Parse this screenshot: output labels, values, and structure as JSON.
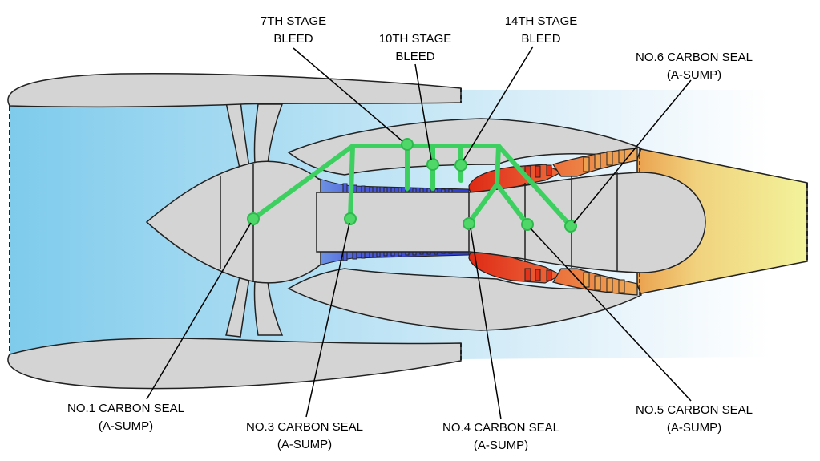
{
  "colors": {
    "inlet_air": "#7ecbec",
    "casing": "#d4d4d4",
    "outline": "#222222",
    "compressor": "#4a5ad8",
    "combustor": "#e2331c",
    "turbine": "#eda050",
    "exhaust": "#f1f09a",
    "bleed_line": "#3dd060"
  },
  "labels": {
    "stage7": {
      "line1": "7TH STAGE",
      "line2": "BLEED"
    },
    "stage10": {
      "line1": "10TH STAGE",
      "line2": "BLEED"
    },
    "stage14": {
      "line1": "14TH STAGE",
      "line2": "BLEED"
    },
    "seal6": {
      "line1": "NO.6 CARBON SEAL",
      "line2": "(A-SUMP)"
    },
    "seal1": {
      "line1": "NO.1 CARBON SEAL",
      "line2": "(A-SUMP)"
    },
    "seal3": {
      "line1": "NO.3 CARBON SEAL",
      "line2": "(A-SUMP)"
    },
    "seal4": {
      "line1": "NO.4 CARBON SEAL",
      "line2": "(A-SUMP)"
    },
    "seal5": {
      "line1": "NO.5 CARBON SEAL",
      "line2": "(A-SUMP)"
    }
  }
}
